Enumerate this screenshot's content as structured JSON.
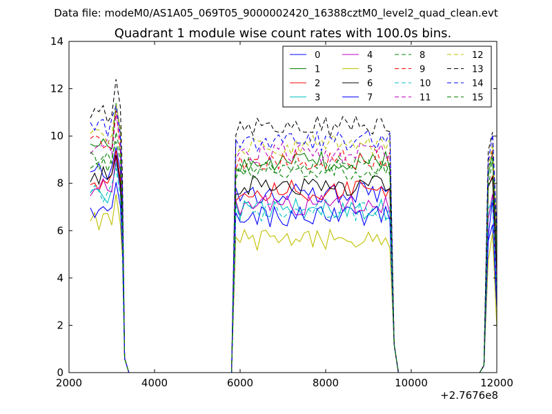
{
  "figure": {
    "suptitle": "Data file: modeM0/AS1A05_069T05_9000002420_16388cztM0_level2_quad_clean.evt",
    "title": "Quadrant 1 module wise count rates with 100.0s bins.",
    "x_offset_label": "+2.7676e8"
  },
  "chart_data": {
    "type": "line",
    "title": "Quadrant 1 module wise count rates with 100.0s bins.",
    "xlabel": "",
    "ylabel": "",
    "xlim": [
      2000,
      12000
    ],
    "ylim": [
      0,
      14
    ],
    "x_offset": 276760000,
    "xticks": [
      2000,
      4000,
      6000,
      8000,
      10000,
      12000
    ],
    "xtick_labels": [
      "2000",
      "4000",
      "6000",
      "8000",
      "10000",
      "12000"
    ],
    "yticks": [
      0,
      2,
      4,
      6,
      8,
      10,
      12,
      14
    ],
    "ytick_labels": [
      "0",
      "2",
      "4",
      "6",
      "8",
      "10",
      "12",
      "14"
    ],
    "grid": false,
    "legend_placement": "top-right",
    "legend_columns": 4,
    "segments": [
      {
        "x_start": 2500,
        "x_end": 3200,
        "step": 100
      },
      {
        "x_start": 5800,
        "x_end": 9500,
        "step": 100
      },
      {
        "x_start": 11600,
        "x_end": 12000,
        "step": 100
      }
    ],
    "series": [
      {
        "name": "0",
        "color": "#0000ff",
        "dashed": false,
        "gap1": 8.4,
        "gap2": 7.6,
        "gap3": 6.2
      },
      {
        "name": "1",
        "color": "#008000",
        "dashed": false,
        "gap1": 9.9,
        "gap2": 8.9,
        "gap3": 8.9
      },
      {
        "name": "2",
        "color": "#ff0000",
        "dashed": false,
        "gap1": 8.1,
        "gap2": 7.7,
        "gap3": 7.8
      },
      {
        "name": "3",
        "color": "#00bfbf",
        "dashed": false,
        "gap1": 7.5,
        "gap2": 6.9,
        "gap3": 6.9
      },
      {
        "name": "4",
        "color": "#bf00bf",
        "dashed": false,
        "gap1": 7.9,
        "gap2": 7.1,
        "gap3": 7.2
      },
      {
        "name": "5",
        "color": "#bfbf00",
        "dashed": false,
        "gap1": 6.4,
        "gap2": 5.6,
        "gap3": 5.4
      },
      {
        "name": "6",
        "color": "#000000",
        "dashed": false,
        "gap1": 8.3,
        "gap2": 7.9,
        "gap3": 7.8
      },
      {
        "name": "7",
        "color": "#0000ff",
        "dashed": false,
        "gap1": 6.9,
        "gap2": 6.6,
        "gap3": 6.5
      },
      {
        "name": "8",
        "color": "#008000",
        "dashed": true,
        "gap1": 8.8,
        "gap2": 8.6,
        "gap3": 8.6
      },
      {
        "name": "9",
        "color": "#ff0000",
        "dashed": true,
        "gap1": 9.6,
        "gap2": 9.0,
        "gap3": 8.9
      },
      {
        "name": "10",
        "color": "#00bfbf",
        "dashed": true,
        "gap1": 7.6,
        "gap2": 6.8,
        "gap3": 6.9
      },
      {
        "name": "11",
        "color": "#bf00bf",
        "dashed": true,
        "gap1": 9.5,
        "gap2": 9.3,
        "gap3": 9.0
      },
      {
        "name": "12",
        "color": "#bfbf00",
        "dashed": true,
        "gap1": 10.0,
        "gap2": 9.6,
        "gap3": 9.3
      },
      {
        "name": "13",
        "color": "#000000",
        "dashed": true,
        "gap1": 11.0,
        "gap2": 10.4,
        "gap3": 9.4
      },
      {
        "name": "14",
        "color": "#0000ff",
        "dashed": true,
        "gap1": 10.3,
        "gap2": 9.8,
        "gap3": 9.4
      },
      {
        "name": "15",
        "color": "#008000",
        "dashed": true,
        "gap1": 9.0,
        "gap2": 8.7,
        "gap3": 8.4
      }
    ]
  }
}
